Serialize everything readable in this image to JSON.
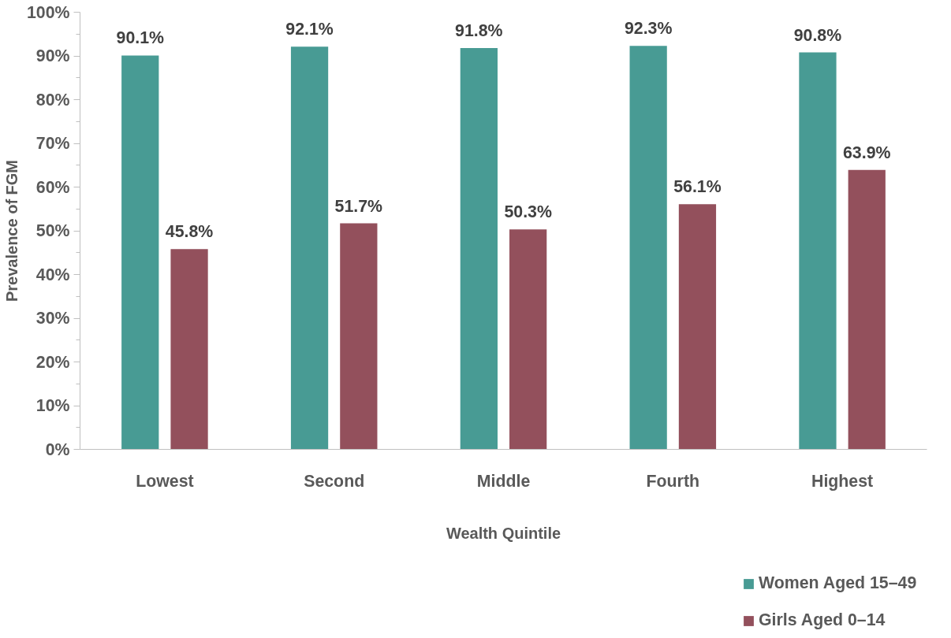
{
  "chart_data": {
    "type": "bar",
    "xlabel": "Wealth Quintile",
    "ylabel": "Prevalence of FGM",
    "categories": [
      "Lowest",
      "Second",
      "Middle",
      "Fourth",
      "Highest"
    ],
    "series": [
      {
        "name": "Women Aged 15–49",
        "color": "#489b94",
        "values": [
          90.1,
          92.1,
          91.8,
          92.3,
          90.8
        ],
        "value_labels": [
          "90.1%",
          "92.1%",
          "91.8%",
          "92.3%",
          "90.8%"
        ]
      },
      {
        "name": "Girls Aged 0–14",
        "color": "#93505c",
        "values": [
          45.8,
          51.7,
          50.3,
          56.1,
          63.9
        ],
        "value_labels": [
          "45.8%",
          "51.7%",
          "50.3%",
          "56.1%",
          "63.9%"
        ]
      }
    ],
    "ylim": [
      0,
      100
    ],
    "yticks": [
      {
        "value": 0,
        "label": "0%"
      },
      {
        "value": 10,
        "label": "10%"
      },
      {
        "value": 20,
        "label": "20%"
      },
      {
        "value": 30,
        "label": "30%"
      },
      {
        "value": 40,
        "label": "40%"
      },
      {
        "value": 50,
        "label": "50%"
      },
      {
        "value": 60,
        "label": "60%"
      },
      {
        "value": 70,
        "label": "70%"
      },
      {
        "value": 80,
        "label": "80%"
      },
      {
        "value": 90,
        "label": "90%"
      },
      {
        "value": 100,
        "label": "100%"
      }
    ],
    "grid": false,
    "legend": "bottom right"
  }
}
